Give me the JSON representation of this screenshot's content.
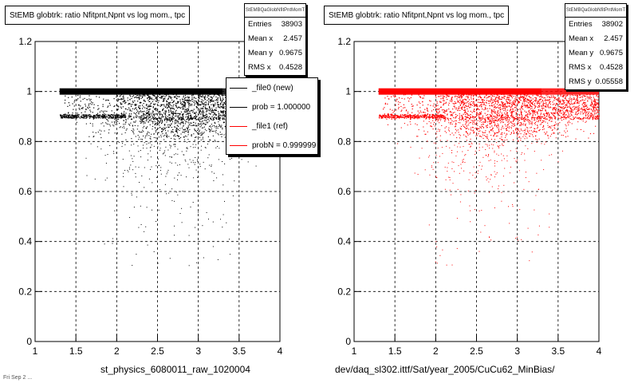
{
  "left_panel": {
    "title": "StEMB globtrk: ratio Nfitpnt,Npnt vs log mom., tpc",
    "stats_name": "StEMBQaGlobNfitPntMomT",
    "stats": [
      {
        "label": "Entries",
        "value": "38903"
      },
      {
        "label": "Mean x",
        "value": "2.457"
      },
      {
        "label": "Mean y",
        "value": "0.9675"
      },
      {
        "label": "RMS x",
        "value": "0.4528"
      }
    ],
    "legend": [
      {
        "label": "_file0 (new)",
        "color": "#000000"
      },
      {
        "label": "prob = 1.000000",
        "color": "#000000"
      },
      {
        "label": "_file1 (ref)",
        "color": "#ff0000"
      },
      {
        "label": "probN = 0.999999",
        "color": "#ff0000"
      }
    ],
    "xcaption": "st_physics_6080011_raw_1020004",
    "footer_text": "Fri Sep  2 ..."
  },
  "right_panel": {
    "title": "StEMB globtrk: ratio Nfitpnt,Npnt vs log mom., tpc",
    "stats_name": "StEMBQaGlobNfitPntMomT",
    "stats": [
      {
        "label": "Entries",
        "value": "38902"
      },
      {
        "label": "Mean x",
        "value": "2.457"
      },
      {
        "label": "Mean y",
        "value": "0.9675"
      },
      {
        "label": "RMS x",
        "value": "0.4528"
      },
      {
        "label": "RMS y",
        "value": "0.05558"
      }
    ],
    "xcaption": "dev/daq_sl302.ittf/Sat/year_2005/CuCu62_MinBias/"
  },
  "chart_data": [
    {
      "type": "scatter",
      "title": "StEMB globtrk: ratio Nfitpnt,Npnt vs log mom., tpc",
      "xlabel": "st_physics_6080011_raw_1020004",
      "ylabel": "",
      "xlim": [
        1,
        4
      ],
      "ylim": [
        0,
        1.2
      ],
      "x_ticks": [
        "1",
        "1.5",
        "2",
        "2.5",
        "3",
        "3.5",
        "4"
      ],
      "y_ticks": [
        "0",
        "0.2",
        "0.4",
        "0.6",
        "0.8",
        "1",
        "1.2"
      ],
      "grid": true,
      "color": "#000000",
      "series": [
        {
          "name": "_file0 (new)",
          "summary": {
            "entries": 38903,
            "mean_x": 2.457,
            "mean_y": 0.9675,
            "rms_x": 0.4528
          },
          "dense_bands": [
            {
              "y": 1.0,
              "x_range": [
                1.3,
                4.0
              ]
            },
            {
              "y": 0.9,
              "x_range": [
                1.3,
                4.0
              ]
            }
          ]
        }
      ]
    },
    {
      "type": "scatter",
      "title": "StEMB globtrk: ratio Nfitpnt,Npnt vs log mom., tpc",
      "xlabel": "dev/daq_sl302.ittf/Sat/year_2005/CuCu62_MinBias/",
      "ylabel": "",
      "xlim": [
        1,
        4
      ],
      "ylim": [
        0,
        1.2
      ],
      "x_ticks": [
        "1",
        "1.5",
        "2",
        "2.5",
        "3",
        "3.5",
        "4"
      ],
      "y_ticks": [
        "0",
        "0.2",
        "0.4",
        "0.6",
        "0.8",
        "1",
        "1.2"
      ],
      "grid": true,
      "color": "#ff0000",
      "series": [
        {
          "name": "_file1 (ref)",
          "summary": {
            "entries": 38902,
            "mean_x": 2.457,
            "mean_y": 0.9675,
            "rms_x": 0.4528,
            "rms_y": 0.05558
          },
          "dense_bands": [
            {
              "y": 1.0,
              "x_range": [
                1.3,
                4.0
              ]
            },
            {
              "y": 0.9,
              "x_range": [
                1.3,
                4.0
              ]
            }
          ]
        }
      ]
    }
  ]
}
